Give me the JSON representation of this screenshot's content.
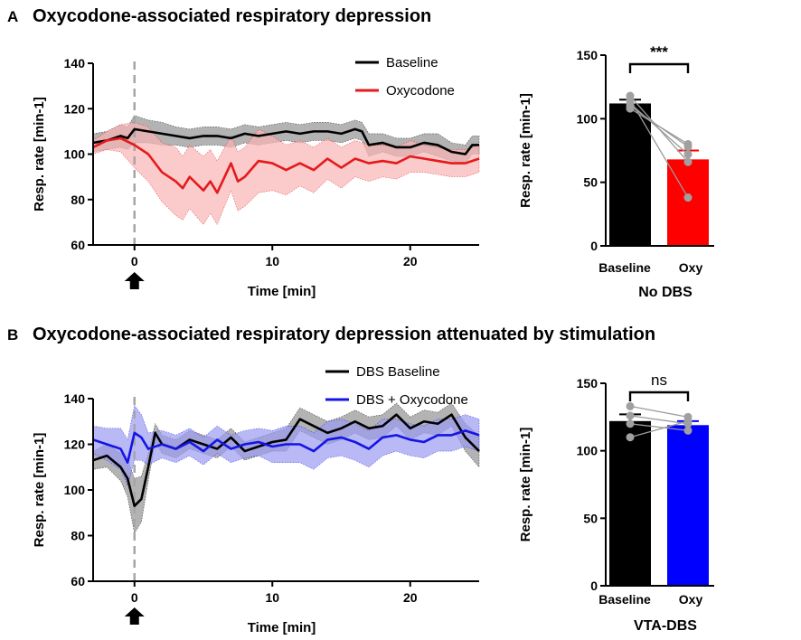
{
  "panel_a": {
    "letter": "A",
    "title": "Oxycodone-associated respiratory depression"
  },
  "panel_b": {
    "letter": "B",
    "title": "Oxycodone-associated respiratory depression attenuated by stimulation"
  },
  "chart_data": [
    {
      "id": "a_line",
      "type": "line",
      "xlabel": "Time [min]",
      "ylabel": "Resp. rate [min-1]",
      "xlim": [
        -3,
        25
      ],
      "ylim": [
        60,
        140
      ],
      "xticks": [
        0,
        10,
        20
      ],
      "yticks": [
        60,
        80,
        100,
        120,
        140
      ],
      "marker_x": 0,
      "series": [
        {
          "name": "Baseline",
          "color": "#000000",
          "band_color": "#a6a6a6",
          "x": [
            -3,
            -2,
            -1,
            -0.5,
            0,
            1,
            2,
            3,
            4,
            5,
            6,
            7,
            8,
            9,
            10,
            11,
            12,
            13,
            14,
            15,
            16,
            16.5,
            17,
            18,
            19,
            20,
            21,
            22,
            23,
            24,
            24.5,
            25
          ],
          "y": [
            105,
            106,
            108,
            107,
            111,
            110,
            109,
            108,
            107,
            108,
            108,
            107,
            109,
            108,
            109,
            110,
            109,
            110,
            110,
            109,
            111,
            110,
            104,
            105,
            103,
            103,
            105,
            104,
            101,
            100,
            104,
            104
          ],
          "err": [
            4,
            4,
            5,
            5,
            6,
            5,
            5,
            4,
            4,
            4,
            4,
            4,
            4,
            4,
            4,
            4,
            4,
            4,
            4,
            4,
            4,
            4,
            5,
            4,
            4,
            4,
            4,
            5,
            4,
            4,
            4,
            4
          ]
        },
        {
          "name": "Oxycodone",
          "color": "#e41a1c",
          "band_color": "#f9b4b4",
          "x": [
            -3,
            -2,
            -1,
            0,
            1,
            2,
            3,
            3.5,
            4,
            5,
            5.5,
            6,
            7,
            7.5,
            8,
            9,
            10,
            11,
            12,
            13,
            14,
            15,
            16,
            17,
            18,
            19,
            20,
            21,
            22,
            23,
            24,
            25
          ],
          "y": [
            103,
            106,
            107,
            104,
            100,
            92,
            88,
            85,
            90,
            84,
            88,
            83,
            96,
            88,
            90,
            97,
            96,
            93,
            96,
            93,
            98,
            94,
            98,
            96,
            97,
            96,
            99,
            98,
            97,
            96,
            96,
            98
          ],
          "err": [
            3,
            4,
            6,
            10,
            12,
            13,
            15,
            14,
            14,
            15,
            14,
            14,
            12,
            13,
            13,
            14,
            12,
            11,
            10,
            10,
            9,
            9,
            8,
            8,
            7,
            7,
            7,
            6,
            6,
            6,
            6,
            6
          ]
        }
      ]
    },
    {
      "id": "a_bar",
      "type": "bar",
      "categories": [
        "Baseline",
        "Oxy"
      ],
      "values": [
        112,
        68
      ],
      "errors": [
        3,
        7
      ],
      "colors": [
        "#000000",
        "#ff0000"
      ],
      "points": [
        [
          110,
          108,
          118,
          115,
          112
        ],
        [
          78,
          80,
          66,
          38,
          72
        ]
      ],
      "ylabel": "Resp. rate [min-1]",
      "ylim": [
        0,
        150
      ],
      "yticks": [
        0,
        50,
        100,
        150
      ],
      "significance": "***",
      "group_label": "No DBS"
    },
    {
      "id": "b_line",
      "type": "line",
      "xlabel": "Time [min]",
      "ylabel": "Resp. rate [min-1]",
      "xlim": [
        -3,
        25
      ],
      "ylim": [
        60,
        140
      ],
      "xticks": [
        0,
        10,
        20
      ],
      "yticks": [
        60,
        80,
        100,
        120,
        140
      ],
      "marker_x": 0,
      "series": [
        {
          "name": "DBS Baseline",
          "color": "#000000",
          "band_color": "#a6a6a6",
          "x": [
            -3,
            -2,
            -1,
            -0.5,
            0,
            0.5,
            1,
            1.5,
            2,
            3,
            4,
            5,
            6,
            7,
            8,
            9,
            10,
            11,
            12,
            13,
            14,
            15,
            16,
            17,
            18,
            19,
            20,
            21,
            22,
            23,
            24,
            25
          ],
          "y": [
            113,
            115,
            110,
            105,
            93,
            96,
            110,
            125,
            120,
            118,
            122,
            120,
            118,
            123,
            117,
            119,
            121,
            122,
            131,
            128,
            125,
            127,
            130,
            127,
            128,
            133,
            127,
            130,
            129,
            133,
            123,
            117
          ],
          "err": [
            4,
            5,
            6,
            8,
            12,
            10,
            6,
            4,
            4,
            4,
            4,
            4,
            4,
            4,
            4,
            4,
            4,
            5,
            5,
            5,
            5,
            5,
            5,
            5,
            5,
            5,
            5,
            5,
            5,
            5,
            6,
            7
          ]
        },
        {
          "name": "DBS + Oxycodone",
          "color": "#1414e6",
          "band_color": "#9b9bf2",
          "x": [
            -3,
            -2,
            -1,
            -0.5,
            0,
            0.5,
            1,
            2,
            3,
            4,
            5,
            6,
            7,
            8,
            9,
            10,
            11,
            12,
            13,
            14,
            15,
            16,
            17,
            18,
            19,
            20,
            21,
            22,
            23,
            24,
            25
          ],
          "y": [
            122,
            120,
            118,
            112,
            125,
            123,
            118,
            120,
            118,
            121,
            117,
            122,
            118,
            120,
            121,
            119,
            120,
            120,
            117,
            122,
            123,
            121,
            118,
            123,
            124,
            122,
            121,
            124,
            124,
            126,
            124
          ],
          "err": [
            6,
            7,
            9,
            10,
            12,
            10,
            7,
            6,
            6,
            6,
            6,
            6,
            6,
            6,
            6,
            7,
            8,
            8,
            8,
            8,
            8,
            8,
            8,
            8,
            7,
            7,
            7,
            7,
            7,
            7,
            7
          ]
        }
      ]
    },
    {
      "id": "b_bar",
      "type": "bar",
      "categories": [
        "Baseline",
        "Oxy"
      ],
      "values": [
        122,
        119
      ],
      "errors": [
        5,
        3
      ],
      "colors": [
        "#000000",
        "#0000ff"
      ],
      "points": [
        [
          133,
          126,
          120,
          110
        ],
        [
          125,
          120,
          115,
          122
        ]
      ],
      "ylabel": "Resp. rate [min-1]",
      "ylim": [
        0,
        150
      ],
      "yticks": [
        0,
        50,
        100,
        150
      ],
      "significance": "ns",
      "group_label": "VTA-DBS"
    }
  ]
}
